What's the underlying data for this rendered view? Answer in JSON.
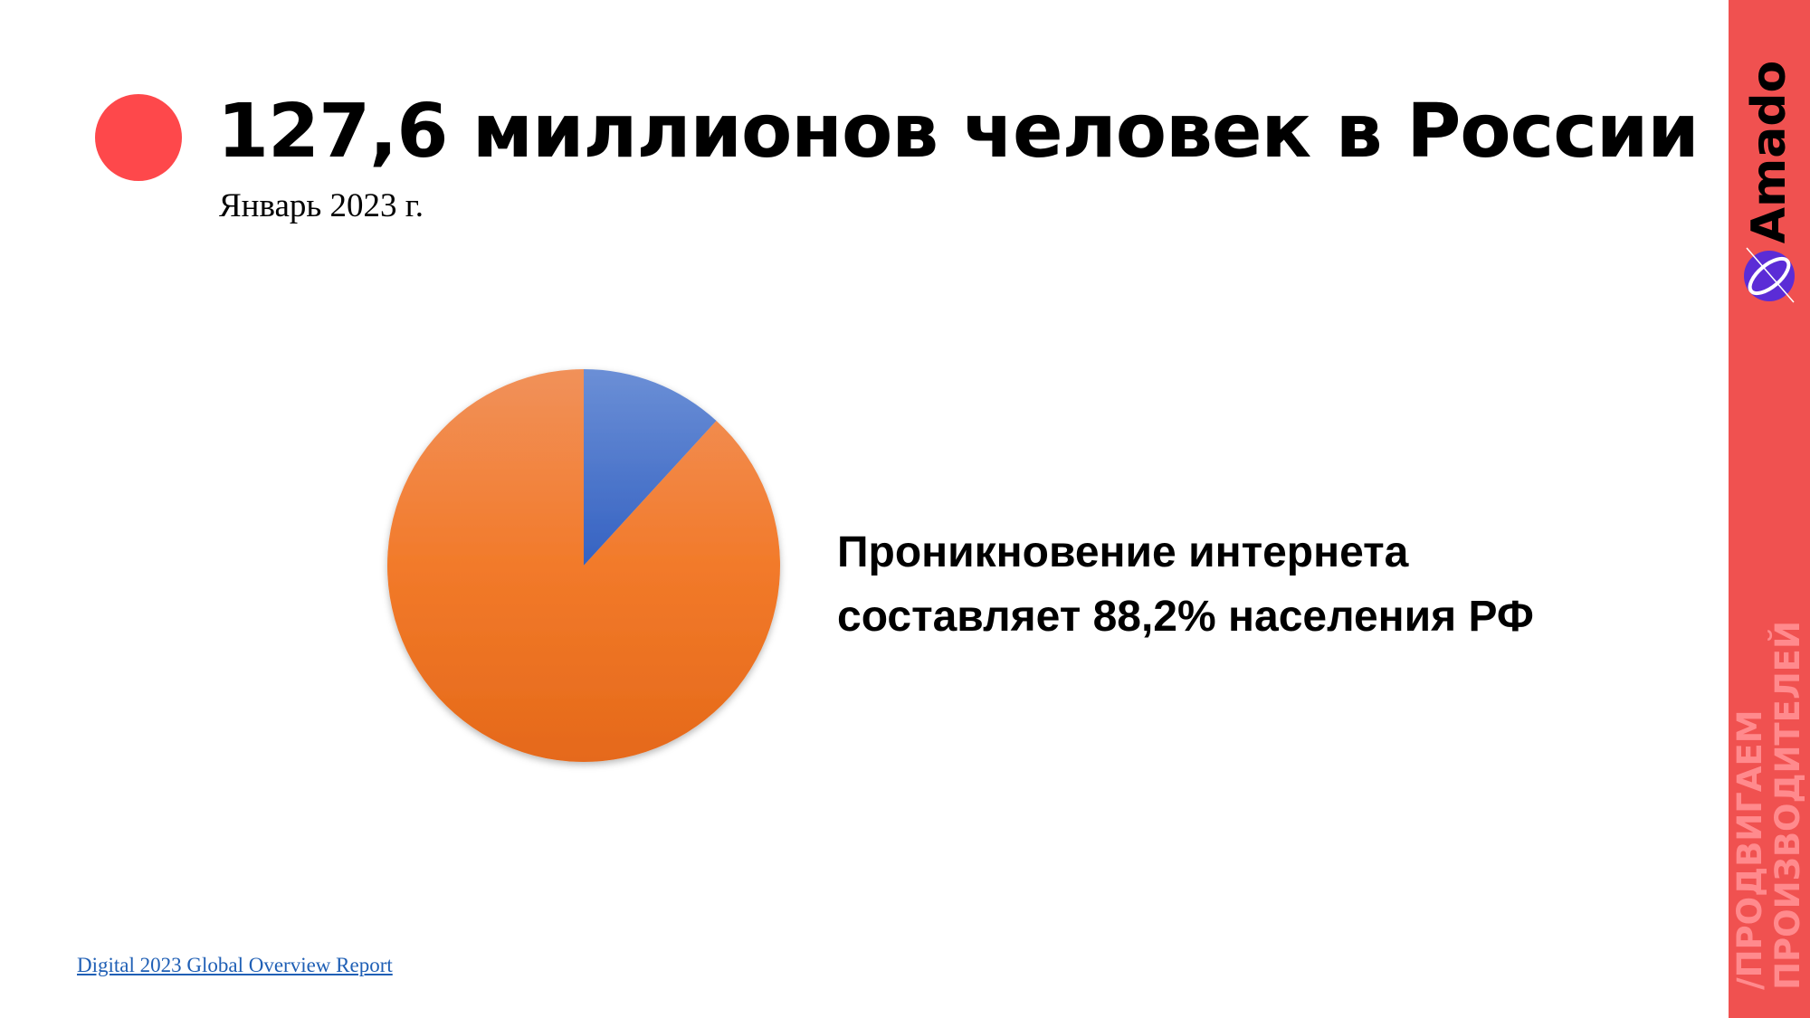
{
  "slide": {
    "title": "127,6 миллионов человек в России",
    "subtitle": "Январь 2023 г.",
    "caption_line1": "Проникновение интернета",
    "caption_line2": "составляет 88,2% населения РФ",
    "source_link": "Digital 2023 Global Overview Report"
  },
  "sidebar": {
    "brand": "Amado",
    "slogan_line1": "/ПРОДВИГАЕМ",
    "slogan_line2": "ПРОИЗВОДИТЕЛЕЙ"
  },
  "colors": {
    "accent": "#fe484b",
    "sidebar": "#f05150",
    "slice_internet": "#f07a2a",
    "slice_other": "#4a72c8",
    "link": "#1f5fb5"
  },
  "chart_data": {
    "type": "pie",
    "categories": [
      "",
      ""
    ],
    "values": [
      11.8,
      88.2
    ],
    "colors": [
      "#4a72c8",
      "#f07a2a"
    ],
    "start_angle_deg": 0,
    "direction": "clockwise"
  }
}
